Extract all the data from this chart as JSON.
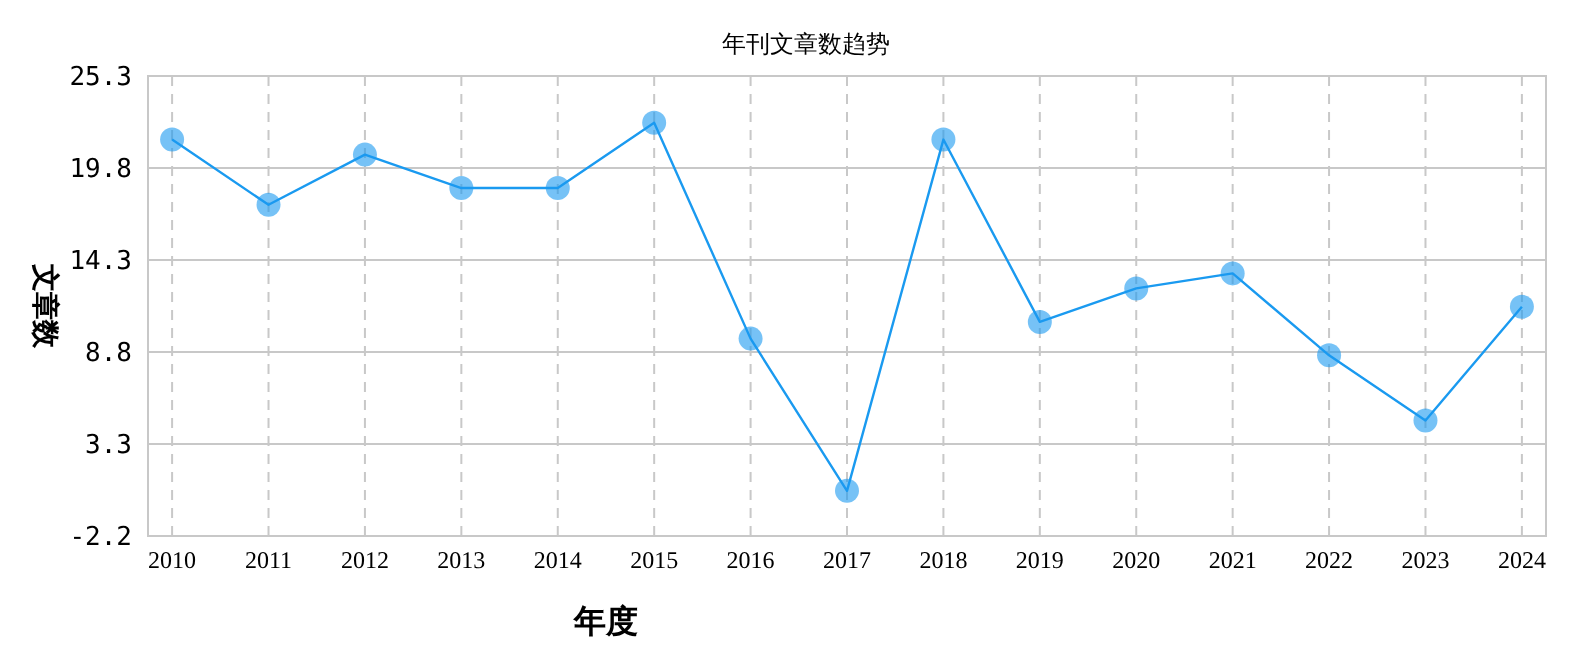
{
  "chart_data": {
    "type": "line",
    "title": "年刊文章数趋势",
    "xlabel": "年度",
    "ylabel": "文章数",
    "categories": [
      "2010",
      "2011",
      "2012",
      "2013",
      "2014",
      "2015",
      "2016",
      "2017",
      "2018",
      "2019",
      "2020",
      "2021",
      "2022",
      "2023",
      "2024"
    ],
    "series": [
      {
        "color": "#1a9af0",
        "values": [
          21.5,
          17.6,
          20.6,
          18.6,
          18.6,
          22.5,
          9.6,
          0.5,
          21.5,
          10.6,
          12.6,
          13.5,
          8.6,
          4.7,
          11.5
        ]
      }
    ],
    "ylim": [
      -2.2,
      25.3
    ],
    "yticks": [
      -2.2,
      3.3,
      8.8,
      14.3,
      19.8,
      25.3
    ],
    "grid": true,
    "marker": "circle",
    "line_style": "solid"
  }
}
